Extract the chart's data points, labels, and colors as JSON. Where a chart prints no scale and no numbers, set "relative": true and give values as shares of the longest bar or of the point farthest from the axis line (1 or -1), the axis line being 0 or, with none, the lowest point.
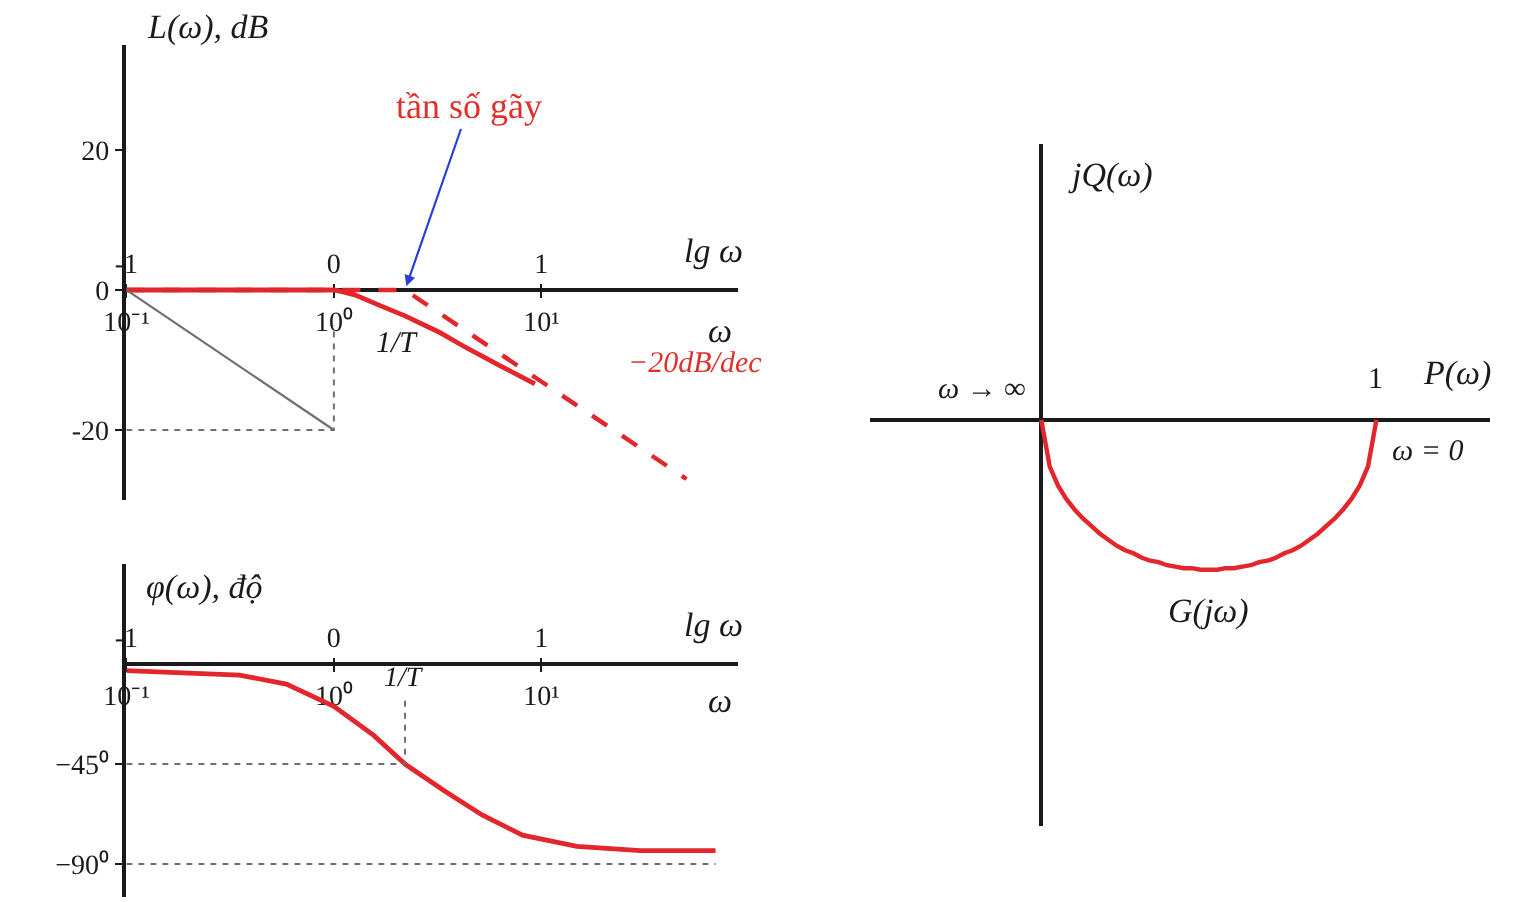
{
  "chart_data": [
    {
      "type": "line",
      "log": "x",
      "xlabel": "ω",
      "x2label": "lg ω",
      "ylabel": "L(ω), dB",
      "xlim": [
        0.1,
        89
      ],
      "xticks": [
        {
          "value": 0.1,
          "label": "10⁻¹"
        },
        {
          "value": 1,
          "label": "10⁰"
        },
        {
          "value": 10,
          "label": "10¹"
        }
      ],
      "x2lim": [
        -1,
        1.95
      ],
      "x2ticks": [
        -1,
        0,
        1
      ],
      "ylim": [
        -30,
        35
      ],
      "yticks": [
        20,
        0,
        -20
      ],
      "series": [
        {
          "color": "#e3262b",
          "x": [
            0.1,
            0.32,
            1,
            1.12,
            1.26,
            1.66,
            2.2,
            3.2,
            4.2,
            6.3,
            9.3
          ],
          "values": [
            0,
            0,
            0,
            -0.3,
            -0.7,
            -2.2,
            -3.7,
            -6,
            -8,
            -10.8,
            -13.4
          ]
        },
        {
          "color": "#e3262b",
          "line_style": "dashed",
          "x": [
            0.1,
            2.2,
            50
          ],
          "values": [
            0,
            0,
            -27
          ]
        },
        {
          "color": "#707070",
          "x": [
            0.1,
            1
          ],
          "values": [
            0,
            -20
          ]
        },
        {
          "color": "#707070",
          "line_style": "dotted",
          "x": [
            0.1,
            1,
            1
          ],
          "values": [
            -20,
            -20,
            -5
          ]
        }
      ],
      "annotations": [
        {
          "text": "tần số gãy",
          "x": 2.2,
          "y": 0
        },
        "1/T",
        "−20dB/dec"
      ]
    },
    {
      "type": "line",
      "log": "x",
      "xlabel": "ω",
      "x2label": "lg ω",
      "ylabel": "φ(ω), độ",
      "xlim": [
        0.1,
        89
      ],
      "xticks": [
        {
          "value": 0.1,
          "label": "10⁻¹"
        },
        {
          "value": 1,
          "label": "10⁰"
        },
        {
          "value": 10,
          "label": "10¹"
        }
      ],
      "x2lim": [
        -1,
        1.95
      ],
      "x2ticks": [
        -1,
        0,
        1
      ],
      "ylim": [
        -105,
        45
      ],
      "yticks": [
        {
          "value": -45,
          "label": "−45⁰"
        },
        {
          "value": -90,
          "label": "−90⁰"
        }
      ],
      "series": [
        {
          "color": "#e3262b",
          "x": [
            0.1,
            0.35,
            0.59,
            1,
            1.55,
            2.2,
            3.4,
            5.2,
            8.1,
            14.8,
            30,
            69
          ],
          "values": [
            -3,
            -5,
            -9,
            -19,
            -32,
            -45,
            -57,
            -68,
            -77,
            -82,
            -84,
            -84
          ]
        },
        {
          "color": "#707070",
          "line_style": "dotted",
          "x": [
            0.1,
            2.2,
            2.2
          ],
          "values": [
            -45,
            -45,
            -16
          ]
        },
        {
          "color": "#707070",
          "line_style": "dotted",
          "x": [
            0.1,
            69
          ],
          "values": [
            -90,
            -90
          ]
        }
      ],
      "annotations": [
        {
          "text": "1/T",
          "x": 2.2,
          "y": -16
        }
      ]
    },
    {
      "type": "line",
      "relative": true,
      "xlabel": "P(ω)",
      "ylabel": "jQ(ω)",
      "categories": [
        null,
        null,
        null,
        null,
        null,
        null,
        null,
        null,
        null,
        null,
        null,
        null,
        null,
        null,
        null,
        null,
        null,
        null,
        null,
        null,
        null,
        null,
        null,
        null,
        null,
        null,
        null,
        null,
        null,
        null,
        null,
        null,
        null,
        null,
        null,
        null,
        null,
        null,
        null,
        null,
        null
      ],
      "series": [
        {
          "color": "#e3262b",
          "values": [
            0,
            -0.31,
            -0.44,
            -0.53,
            -0.6,
            -0.66,
            -0.71,
            -0.76,
            -0.8,
            -0.84,
            -0.87,
            -0.89,
            -0.92,
            -0.94,
            -0.95,
            -0.97,
            -0.98,
            -0.99,
            -0.99,
            -1,
            -1,
            -1,
            -0.99,
            -0.99,
            -0.98,
            -0.97,
            -0.95,
            -0.94,
            -0.92,
            -0.89,
            -0.87,
            -0.84,
            -0.8,
            -0.76,
            -0.71,
            -0.66,
            -0.6,
            -0.53,
            -0.44,
            -0.31,
            0
          ]
        }
      ],
      "annotations": [
        "1",
        "ω → ∞",
        "ω = 0",
        "G(jω)"
      ]
    }
  ]
}
